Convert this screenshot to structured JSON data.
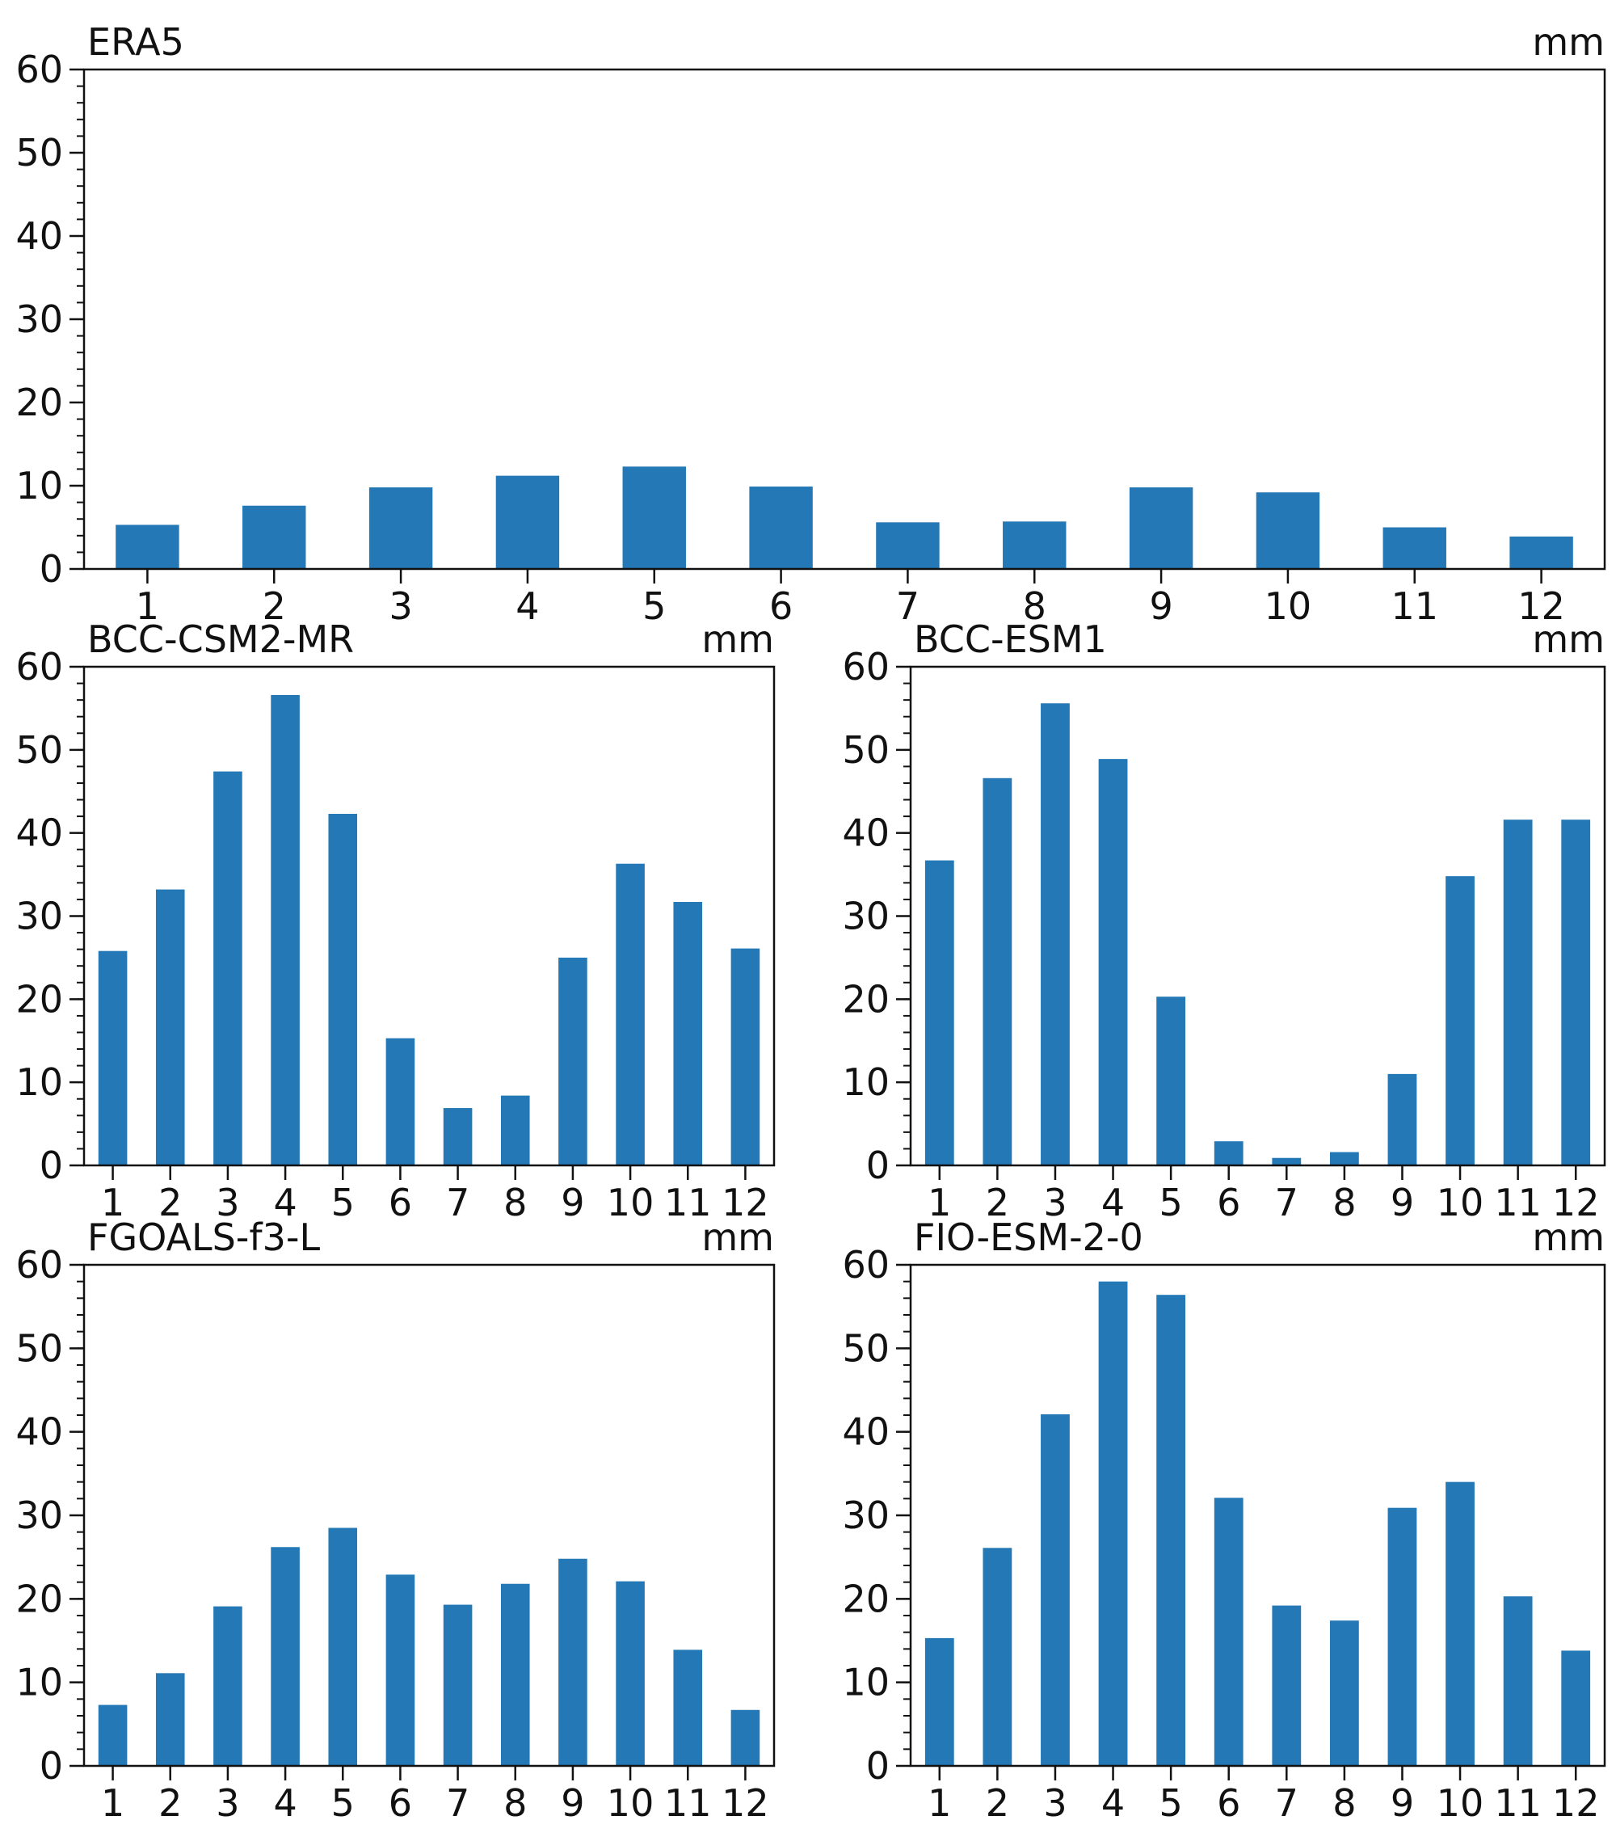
{
  "colors": {
    "bar": "#2378b5",
    "axis": "#111111",
    "background": "#ffffff"
  },
  "chart_data": [
    {
      "type": "bar",
      "title": "ERA5",
      "unit": "mm",
      "categories": [
        "1",
        "2",
        "3",
        "4",
        "5",
        "6",
        "7",
        "8",
        "9",
        "10",
        "11",
        "12"
      ],
      "values": [
        5.3,
        7.6,
        9.8,
        11.2,
        12.3,
        9.9,
        5.6,
        5.7,
        9.8,
        9.2,
        5.0,
        3.9
      ],
      "ylim": [
        0,
        60
      ],
      "yticks": [
        0,
        10,
        20,
        30,
        40,
        50,
        60
      ],
      "yticks_minor": 2
    },
    {
      "type": "bar",
      "title": "BCC-CSM2-MR",
      "unit": "mm",
      "categories": [
        "1",
        "2",
        "3",
        "4",
        "5",
        "6",
        "7",
        "8",
        "9",
        "10",
        "11",
        "12"
      ],
      "values": [
        25.8,
        33.2,
        47.4,
        56.6,
        42.3,
        15.3,
        6.9,
        8.4,
        25.0,
        36.3,
        31.7,
        26.1
      ],
      "ylim": [
        0,
        60
      ],
      "yticks": [
        0,
        10,
        20,
        30,
        40,
        50,
        60
      ],
      "yticks_minor": 2
    },
    {
      "type": "bar",
      "title": "BCC-ESM1",
      "unit": "mm",
      "categories": [
        "1",
        "2",
        "3",
        "4",
        "5",
        "6",
        "7",
        "8",
        "9",
        "10",
        "11",
        "12"
      ],
      "values": [
        36.7,
        46.6,
        55.6,
        48.9,
        20.3,
        2.9,
        0.9,
        1.6,
        11.0,
        34.8,
        41.6,
        41.6
      ],
      "ylim": [
        0,
        60
      ],
      "yticks": [
        0,
        10,
        20,
        30,
        40,
        50,
        60
      ],
      "yticks_minor": 2
    },
    {
      "type": "bar",
      "title": "FGOALS-f3-L",
      "unit": "mm",
      "categories": [
        "1",
        "2",
        "3",
        "4",
        "5",
        "6",
        "7",
        "8",
        "9",
        "10",
        "11",
        "12"
      ],
      "values": [
        7.3,
        11.1,
        19.1,
        26.2,
        28.5,
        22.9,
        19.3,
        21.8,
        24.8,
        22.1,
        13.9,
        6.7
      ],
      "ylim": [
        0,
        60
      ],
      "yticks": [
        0,
        10,
        20,
        30,
        40,
        50,
        60
      ],
      "yticks_minor": 2
    },
    {
      "type": "bar",
      "title": "FIO-ESM-2-0",
      "unit": "mm",
      "categories": [
        "1",
        "2",
        "3",
        "4",
        "5",
        "6",
        "7",
        "8",
        "9",
        "10",
        "11",
        "12"
      ],
      "values": [
        15.3,
        26.1,
        42.1,
        58.0,
        56.4,
        32.1,
        19.2,
        17.4,
        30.9,
        34.0,
        20.3,
        13.8
      ],
      "ylim": [
        0,
        60
      ],
      "yticks": [
        0,
        10,
        20,
        30,
        40,
        50,
        60
      ],
      "yticks_minor": 2
    }
  ]
}
